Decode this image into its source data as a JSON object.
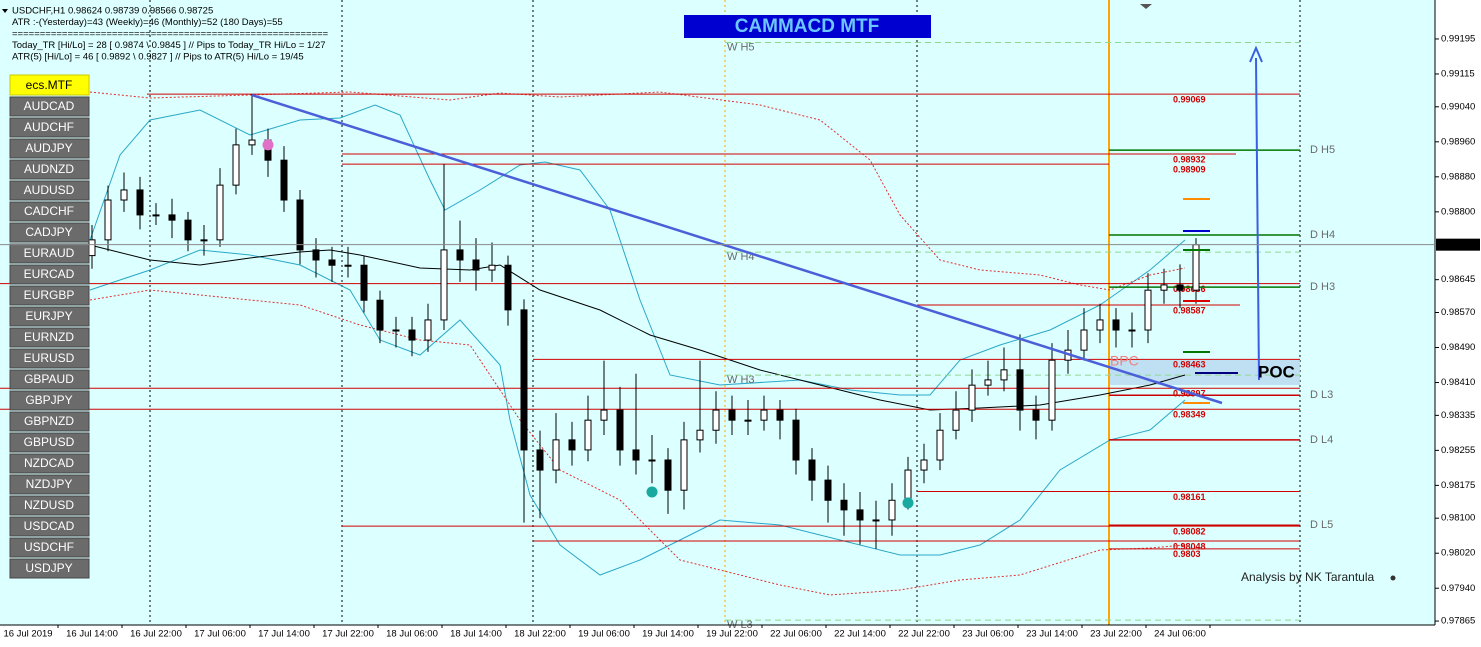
{
  "chart_data": {
    "type": "candlestick",
    "title": "CAMMACD MTF",
    "info_lines": [
      "USDCHF,H1  0.98624 0.98739 0.98566 0.98725",
      "ATR :-(Yesterday)=43      (Weekly)=46      (Monthly)=52      (180 Days)=55",
      "=========================================================",
      "Today_TR [Hi/Lo] = 28 [ 0.9874 \\ 0.9845 ]  // Pips to Today_TR Hi/Lo  = 1/27",
      "ATR(5)      [Hi/Lo] = 46 [ 0.9892 \\ 0.9827 ]  //  Pips to ATR(5) Hi/Lo      = 19/45"
    ],
    "indicator_button": "ecs.MTF",
    "symbols": [
      "AUDCAD",
      "AUDCHF",
      "AUDJPY",
      "AUDNZD",
      "AUDUSD",
      "CADCHF",
      "CADJPY",
      "EURAUD",
      "EURCAD",
      "EURGBP",
      "EURJPY",
      "EURNZD",
      "EURUSD",
      "GBPAUD",
      "GBPJPY",
      "GBPNZD",
      "GBPUSD",
      "NZDCAD",
      "NZDJPY",
      "NZDUSD",
      "USDCAD",
      "USDCHF",
      "USDJPY"
    ],
    "x_labels": [
      "16 Jul 2019",
      "16 Jul 14:00",
      "16 Jul 22:00",
      "17 Jul 06:00",
      "17 Jul 14:00",
      "17 Jul 22:00",
      "18 Jul 06:00",
      "18 Jul 14:00",
      "18 Jul 22:00",
      "19 Jul 06:00",
      "19 Jul 14:00",
      "19 Jul 22:00",
      "22 Jul 06:00",
      "22 Jul 14:00",
      "22 Jul 22:00",
      "23 Jul 06:00",
      "23 Jul 14:00",
      "23 Jul 22:00",
      "24 Jul 06:00"
    ],
    "open": [
      0.987,
      0.98736,
      0.98827,
      0.9885,
      0.98793,
      0.98793,
      0.98781,
      0.98736,
      0.98736,
      0.98861,
      0.98953,
      0.98964,
      0.98918,
      0.98827,
      0.98713,
      0.9869,
      0.98678,
      0.98678,
      0.98598,
      0.9853,
      0.9853,
      0.98507,
      0.98553,
      0.98713,
      0.9869,
      0.98667,
      0.98678,
      0.98576,
      0.98256,
      0.9821,
      0.98279,
      0.98256,
      0.98324,
      0.98347,
      0.98256,
      0.98233,
      0.98233,
      0.98164,
      0.98279,
      0.98301,
      0.98347,
      0.98324,
      0.98324,
      0.98347,
      0.98324,
      0.98233,
      0.98187,
      0.98141,
      0.98119,
      0.98096,
      0.98096,
      0.98141,
      0.9821,
      0.98233,
      0.98301,
      0.98347,
      0.98404,
      0.98416,
      0.98439,
      0.98347,
      0.98324,
      0.98461,
      0.98484,
      0.9853,
      0.98553,
      0.9853,
      0.9853,
      0.98621,
      0.98633,
      0.98621
    ],
    "high": [
      0.9877,
      0.9886,
      0.9889,
      0.9888,
      0.9882,
      0.9883,
      0.988,
      0.9877,
      0.989,
      0.9899,
      0.99069,
      0.9899,
      0.9895,
      0.9885,
      0.9874,
      0.9872,
      0.9872,
      0.987,
      0.9862,
      0.9856,
      0.9856,
      0.9859,
      0.98909,
      0.9878,
      0.9874,
      0.9873,
      0.987,
      0.986,
      0.983,
      0.9834,
      0.9832,
      0.9838,
      0.9846,
      0.984,
      0.9843,
      0.9829,
      0.9826,
      0.9832,
      0.9846,
      0.9839,
      0.9838,
      0.9837,
      0.9838,
      0.9837,
      0.9835,
      0.9826,
      0.9822,
      0.9818,
      0.9816,
      0.9814,
      0.9818,
      0.9824,
      0.9827,
      0.9834,
      0.9839,
      0.9844,
      0.9846,
      0.9849,
      0.9852,
      0.9838,
      0.985,
      0.9853,
      0.9858,
      0.9859,
      0.9858,
      0.9857,
      0.9866,
      0.9867,
      0.9868,
      0.9874
    ],
    "low": [
      0.9867,
      0.9871,
      0.988,
      0.9876,
      0.9877,
      0.9874,
      0.9871,
      0.987,
      0.9872,
      0.9884,
      0.9893,
      0.9888,
      0.988,
      0.9868,
      0.9865,
      0.9864,
      0.9865,
      0.9857,
      0.985,
      0.9849,
      0.9847,
      0.9848,
      0.9853,
      0.9864,
      0.9862,
      0.9864,
      0.9854,
      0.9809,
      0.981,
      0.9818,
      0.9822,
      0.9823,
      0.9829,
      0.9822,
      0.982,
      0.9818,
      0.9811,
      0.9812,
      0.9825,
      0.9827,
      0.9829,
      0.9829,
      0.983,
      0.9828,
      0.982,
      0.9814,
      0.9809,
      0.9806,
      0.9804,
      0.9803,
      0.9806,
      0.9812,
      0.9818,
      0.9821,
      0.9828,
      0.9832,
      0.9838,
      0.9839,
      0.983,
      0.9828,
      0.983,
      0.9843,
      0.9846,
      0.985,
      0.9849,
      0.9849,
      0.985,
      0.9859,
      0.9858,
      0.9859
    ],
    "close": [
      0.98736,
      0.98827,
      0.9885,
      0.98793,
      0.98793,
      0.98781,
      0.98736,
      0.98736,
      0.98861,
      0.98953,
      0.98964,
      0.98918,
      0.98827,
      0.98713,
      0.9869,
      0.98678,
      0.98678,
      0.98598,
      0.9853,
      0.9853,
      0.98507,
      0.98553,
      0.98713,
      0.9869,
      0.98667,
      0.98678,
      0.98576,
      0.98256,
      0.9821,
      0.98279,
      0.98256,
      0.98324,
      0.98347,
      0.98256,
      0.98233,
      0.98233,
      0.98164,
      0.98279,
      0.98301,
      0.98347,
      0.98324,
      0.98324,
      0.98347,
      0.98324,
      0.98233,
      0.98187,
      0.98141,
      0.98119,
      0.98096,
      0.98096,
      0.98141,
      0.9821,
      0.98233,
      0.98301,
      0.98347,
      0.98404,
      0.98416,
      0.98439,
      0.98347,
      0.98324,
      0.98461,
      0.98484,
      0.9853,
      0.98553,
      0.9853,
      0.9853,
      0.98621,
      0.98633,
      0.98621,
      0.98725
    ],
    "levels": [
      0.99069,
      0.98932,
      0.98909,
      0.98636,
      0.98587,
      0.98463,
      0.98397,
      0.98349,
      0.98161,
      0.98082,
      0.98048,
      0.9803
    ],
    "level_color": "#d00000",
    "pivots": [
      {
        "label": "W H5",
        "value": 0.99187
      },
      {
        "label": "W H4",
        "value": 0.98708
      },
      {
        "label": "W H3",
        "value": 0.98427
      },
      {
        "label": "W L3",
        "value": 0.97867
      },
      {
        "label": "D H5",
        "value": 0.98941
      },
      {
        "label": "D H4",
        "value": 0.98747
      },
      {
        "label": "D H3",
        "value": 0.98628
      },
      {
        "label": "D L3",
        "value": 0.98381
      },
      {
        "label": "D L4",
        "value": 0.98279
      },
      {
        "label": "D L5",
        "value": 0.98084
      }
    ],
    "signals": [
      {
        "index": 11,
        "value": 0.98953,
        "color": "#e070c8"
      },
      {
        "index": 35,
        "value": 0.9816,
        "color": "#1aa9a0"
      },
      {
        "index": 51,
        "value": 0.98135,
        "color": "#1aa9a0"
      }
    ],
    "current_price": 0.98725,
    "poc_label": "POC",
    "bpc_label": "BPC",
    "footer_note": "Analysis by NK Tarantula",
    "ylim": [
      0.97856,
      0.99284
    ],
    "yticks": [
      0.99195,
      0.99115,
      {
        "value": 0.9904,
        "label": "0.99040"
      },
      {
        "value": 0.9896,
        "label": "0.98960"
      },
      {
        "value": 0.9888,
        "label": "0.98880"
      },
      {
        "value": 0.988,
        "label": "0.98800"
      },
      0.98645,
      {
        "value": 0.9857,
        "label": "0.98570"
      },
      {
        "value": 0.9849,
        "label": "0.98490"
      },
      {
        "value": 0.9841,
        "label": "0.98410"
      },
      0.98335,
      0.98255,
      0.98175,
      {
        "value": 0.981,
        "label": "0.98100"
      },
      {
        "value": 0.9802,
        "label": "0.98020"
      },
      {
        "value": 0.9794,
        "label": "0.97940"
      },
      0.97865
    ]
  }
}
